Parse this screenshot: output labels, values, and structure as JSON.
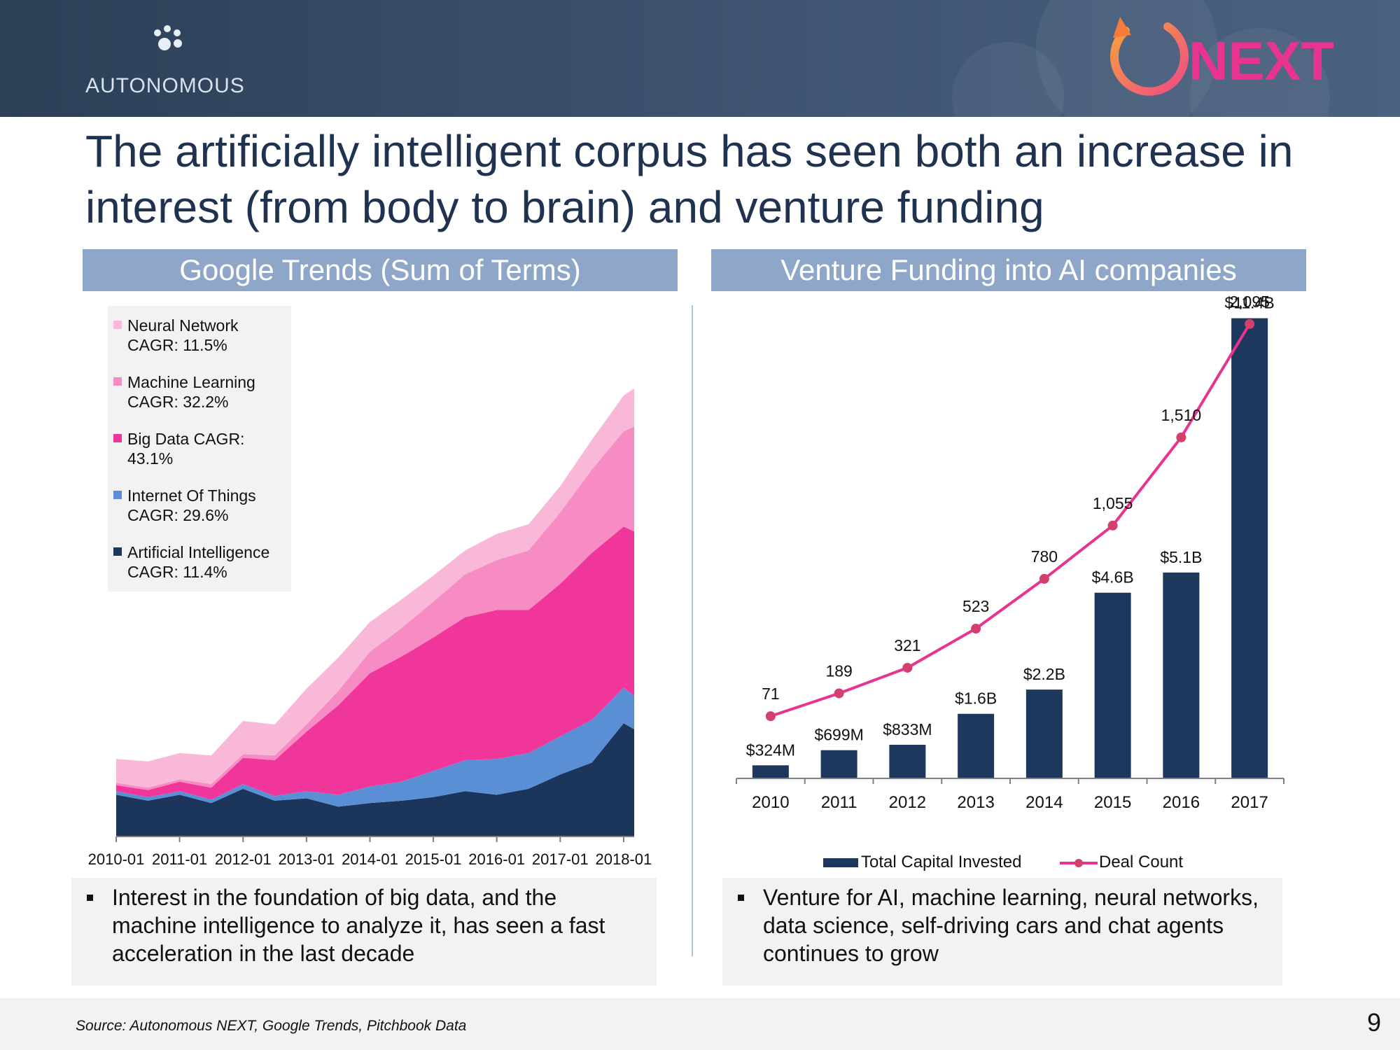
{
  "header": {
    "brand": "AUTONOMOUS",
    "partner_logo_text": "NEXT",
    "colors": {
      "header_bg": "#34495f",
      "next_magenta": "#e8348f",
      "next_orange": "#f47b3a"
    }
  },
  "title": "The artificially intelligent corpus has seen both an increase in interest (from body to brain) and venture funding",
  "left_panel": {
    "band_title": "Google Trends (Sum of Terms)",
    "bullet": "Interest in the foundation of big data, and the machine intelligence to analyze it, has seen a fast acceleration in the last decade"
  },
  "right_panel": {
    "band_title": "Venture Funding into AI companies",
    "bullet": "Venture for AI, machine learning, neural networks, data science, self-driving cars and chat agents continues to grow"
  },
  "footer": {
    "source": "Source: Autonomous NEXT, Google Trends, Pitchbook Data",
    "page_number": "9"
  },
  "chart_data": [
    {
      "type": "area",
      "stacked": true,
      "title": "Google Trends (Sum of Terms)",
      "x_tick_labels": [
        "2010-01",
        "2011-01",
        "2012-01",
        "2013-01",
        "2014-01",
        "2015-01",
        "2016-01",
        "2017-01",
        "2018-01"
      ],
      "x_range": [
        "2010-01",
        "2018-03"
      ],
      "y_range": [
        0,
        420
      ],
      "x": [
        "2010-01",
        "2010-07",
        "2011-01",
        "2011-07",
        "2012-01",
        "2012-07",
        "2013-01",
        "2013-07",
        "2014-01",
        "2014-07",
        "2015-01",
        "2015-07",
        "2016-01",
        "2016-07",
        "2017-01",
        "2017-07",
        "2018-01",
        "2018-03"
      ],
      "series": [
        {
          "name": "Artificial Intelligence",
          "label": "Artificial Intelligence CAGR: 11.4%",
          "color": "#1b355b",
          "values": [
            35,
            30,
            35,
            28,
            40,
            30,
            32,
            25,
            28,
            30,
            33,
            38,
            35,
            40,
            52,
            62,
            95,
            90
          ]
        },
        {
          "name": "Internet Of Things",
          "label": "Internet Of Things CAGR: 29.6%",
          "color": "#5a8fd6",
          "values": [
            3,
            3,
            3,
            3,
            4,
            4,
            6,
            10,
            14,
            16,
            22,
            26,
            30,
            30,
            32,
            36,
            30,
            28
          ]
        },
        {
          "name": "Big Data",
          "label": "Big Data CAGR: 43.1%",
          "color": "#f0369a",
          "values": [
            5,
            6,
            8,
            10,
            22,
            30,
            50,
            75,
            95,
            105,
            112,
            120,
            125,
            120,
            128,
            140,
            135,
            138
          ]
        },
        {
          "name": "Machine Learning",
          "label": "Machine Learning CAGR: 32.2%",
          "color": "#f78cc4",
          "values": [
            2,
            2,
            2,
            3,
            3,
            4,
            6,
            12,
            18,
            24,
            30,
            36,
            42,
            50,
            60,
            70,
            80,
            88
          ]
        },
        {
          "name": "Neural Network",
          "label": "Neural Network CAGR: 11.5%",
          "color": "#fab8d8",
          "values": [
            20,
            22,
            22,
            24,
            28,
            26,
            30,
            28,
            25,
            24,
            22,
            20,
            22,
            22,
            22,
            25,
            30,
            32
          ]
        }
      ],
      "legend": "upper-left",
      "grid": false
    },
    {
      "type": "bar",
      "title": "Venture Funding into AI companies",
      "categories": [
        "2010",
        "2011",
        "2012",
        "2013",
        "2014",
        "2015",
        "2016",
        "2017"
      ],
      "series": [
        {
          "name": "Total Capital Invested",
          "type": "bar",
          "axis": "left",
          "color": "#1d375d",
          "values": [
            0.324,
            0.699,
            0.833,
            1.6,
            2.2,
            4.6,
            5.1,
            11.4
          ],
          "labels": [
            "$324M",
            "$699M",
            "$833M",
            "$1.6B",
            "$2.2B",
            "$4.6B",
            "$5.1B",
            "$11.4B"
          ]
        },
        {
          "name": "Deal Count",
          "type": "line",
          "axis": "right",
          "color": "#e8348f",
          "values": [
            71,
            189,
            321,
            523,
            780,
            1055,
            1510,
            2095
          ],
          "labels": [
            "71",
            "189",
            "321",
            "523",
            "780",
            "1,055",
            "1,510",
            "2,095"
          ]
        }
      ],
      "y_left_range": [
        0,
        12
      ],
      "y_right_range": [
        -250,
        2250
      ],
      "legend": "bottom",
      "grid": false
    }
  ]
}
